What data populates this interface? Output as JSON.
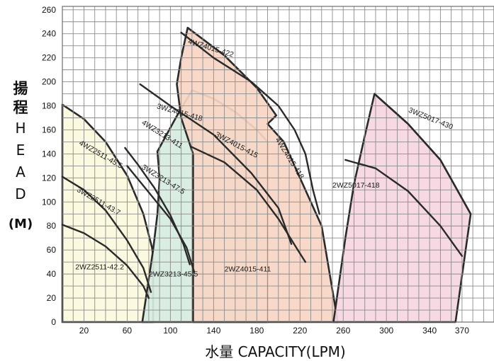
{
  "chart_data": {
    "type": "line",
    "title": "",
    "xlabel": "水量 CAPACITY(LPM)",
    "ylabel": {
      "cn": [
        "揚",
        "程"
      ],
      "en": [
        "H",
        "E",
        "A",
        "D"
      ],
      "unit": "(M)"
    },
    "xlim": [
      0,
      400
    ],
    "ylim": [
      0,
      265
    ],
    "xticks": [
      20,
      60,
      100,
      140,
      180,
      220,
      260,
      300,
      340,
      370
    ],
    "yticks": [
      0,
      20,
      40,
      60,
      80,
      100,
      120,
      140,
      160,
      180,
      200,
      220,
      240,
      260
    ],
    "grid": true,
    "colors": {
      "grid": "#8c8c8c",
      "curve": "#2a2a2a",
      "zone_2511": "#fbf8dc",
      "zone_3213": "#d6ecdf",
      "zone_4015": "#f7d6c4",
      "zone_5017": "#f6d6e1"
    },
    "zones": [
      {
        "name": "2WZ2511 zone",
        "color_key": "zone_2511",
        "boundary": [
          [
            0,
            0
          ],
          [
            0,
            181
          ],
          [
            20,
            169
          ],
          [
            40,
            150
          ],
          [
            60,
            122
          ],
          [
            75,
            90
          ],
          [
            83,
            62
          ],
          [
            84,
            55
          ],
          [
            84,
            0
          ]
        ]
      },
      {
        "name": "2WZ3213 zone",
        "color_key": "zone_3213",
        "boundary": [
          [
            74,
            0
          ],
          [
            84,
            60
          ],
          [
            88,
            90
          ],
          [
            90,
            120
          ],
          [
            88,
            142
          ],
          [
            105,
            170
          ],
          [
            120,
            193
          ],
          [
            140,
            186
          ],
          [
            160,
            175
          ],
          [
            180,
            160
          ],
          [
            190,
            150
          ],
          [
            190,
            0
          ]
        ]
      },
      {
        "name": "2WZ4015 zone",
        "color_key": "zone_4015",
        "boundary": [
          [
            121,
            0
          ],
          [
            121,
            140
          ],
          [
            110,
            170
          ],
          [
            106,
            198
          ],
          [
            110,
            220
          ],
          [
            116,
            245
          ],
          [
            150,
            222
          ],
          [
            180,
            195
          ],
          [
            198,
            172
          ],
          [
            190,
            165
          ],
          [
            205,
            150
          ],
          [
            220,
            120
          ],
          [
            240,
            80
          ],
          [
            255,
            0
          ]
        ]
      },
      {
        "name": "2WZ5017 zone",
        "color_key": "zone_5017",
        "boundary": [
          [
            251,
            0
          ],
          [
            262,
            70
          ],
          [
            270,
            115
          ],
          [
            280,
            155
          ],
          [
            289,
            190
          ],
          [
            320,
            165
          ],
          [
            350,
            135
          ],
          [
            378,
            90
          ],
          [
            364,
            0
          ]
        ]
      }
    ],
    "series": [
      {
        "label": "4WZ2511-45.5",
        "points": [
          [
            0,
            121
          ],
          [
            20,
            110
          ],
          [
            40,
            93
          ],
          [
            60,
            68
          ],
          [
            75,
            45
          ],
          [
            82,
            25
          ]
        ],
        "label_at": [
          15,
          148
        ],
        "label_rot": 30
      },
      {
        "label": "3WZ2511-43.7",
        "points": [
          [
            0,
            81
          ],
          [
            20,
            74
          ],
          [
            40,
            63
          ],
          [
            60,
            47
          ],
          [
            75,
            30
          ],
          [
            80,
            20
          ]
        ],
        "label_at": [
          13,
          109
        ],
        "label_rot": 30
      },
      {
        "label": "2WZ2511-42.2",
        "points": [],
        "label_at": [
          12,
          44
        ],
        "label_rot": 0
      },
      {
        "label": "4WZ3213-411",
        "points": [
          [
            58,
            145
          ],
          [
            70,
            131
          ],
          [
            85,
            112
          ],
          [
            100,
            89
          ],
          [
            112,
            65
          ],
          [
            118,
            48
          ]
        ],
        "label_at": [
          73,
          165
        ],
        "label_rot": 32
      },
      {
        "label": "3WZ3213-47.5",
        "points": [
          [
            60,
            130
          ],
          [
            80,
            108
          ],
          [
            100,
            86
          ],
          [
            115,
            62
          ],
          [
            122,
            42
          ]
        ],
        "label_at": [
          73,
          128
        ],
        "label_rot": 32
      },
      {
        "label": "2WZ3213-45.5",
        "points": [],
        "label_at": [
          80,
          38
        ],
        "label_rot": 0
      },
      {
        "label": "3WZ4015-418",
        "points": [
          [
            72,
            198
          ],
          [
            100,
            180
          ],
          [
            140,
            156
          ],
          [
            175,
            124
          ],
          [
            200,
            95
          ],
          [
            212,
            65
          ]
        ],
        "label_at": [
          87,
          178
        ],
        "label_rot": 16
      },
      {
        "label": "3WZ4015-415",
        "points": [
          [
            119,
            146
          ],
          [
            150,
            133
          ],
          [
            180,
            110
          ],
          [
            200,
            86
          ],
          [
            218,
            60
          ],
          [
            225,
            50
          ]
        ],
        "label_at": [
          141,
          155
        ],
        "label_rot": 28
      },
      {
        "label": "2WZ4015-411",
        "points": [],
        "label_at": [
          150,
          42
        ],
        "label_rot": 0
      },
      {
        "label": "4WZ4015-422",
        "points": [
          [
            110,
            241
          ],
          [
            140,
            220
          ],
          [
            175,
            200
          ],
          [
            200,
            180
          ],
          [
            215,
            160
          ],
          [
            225,
            140
          ],
          [
            232,
            110
          ],
          [
            238,
            90
          ]
        ],
        "label_at": [
          116,
          232
        ],
        "label_rot": 17
      },
      {
        "label": "4WZ4015-418",
        "points": [],
        "label_at": [
          197,
          152
        ],
        "label_rot": 58
      },
      {
        "label": "3WZ5017-430",
        "points": [
          [
            289,
            190
          ],
          [
            320,
            165
          ],
          [
            350,
            135
          ],
          [
            378,
            90
          ]
        ],
        "label_at": [
          320,
          175
        ],
        "label_rot": 22
      },
      {
        "label": "2WZ5017-418",
        "points": [
          [
            262,
            135
          ],
          [
            290,
            128
          ],
          [
            320,
            109
          ],
          [
            350,
            80
          ],
          [
            370,
            55
          ]
        ],
        "label_at": [
          250,
          112
        ],
        "label_rot": 0
      }
    ]
  }
}
